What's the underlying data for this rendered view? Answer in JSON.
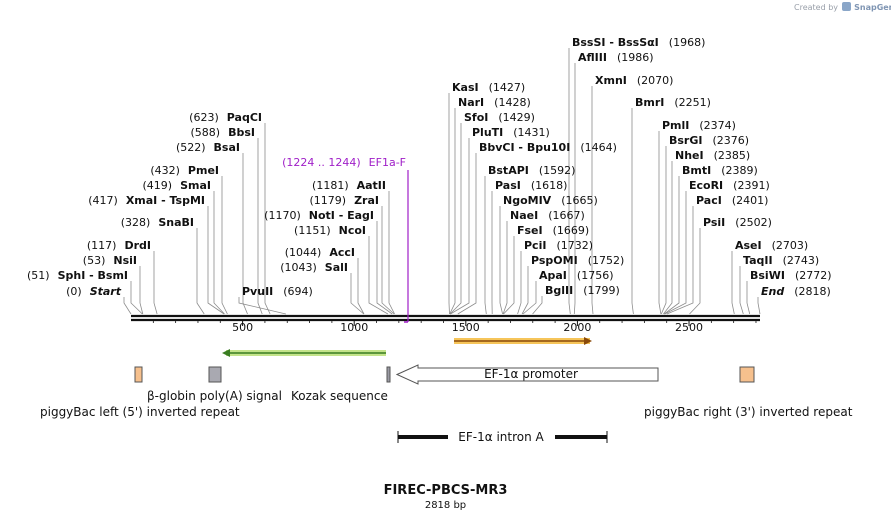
{
  "credit": {
    "prefix": "Created by",
    "brand": "SnapGene"
  },
  "plasmid": {
    "name": "FIREC-PBCS-MR3",
    "size_label": "2818 bp",
    "length": 2818
  },
  "ruler": {
    "ticks": [
      "500",
      "1000",
      "1500",
      "2000",
      "2500"
    ]
  },
  "colors": {
    "primer": "#a020c8",
    "arrow_green": "#3a7d22",
    "arrow_orange": "#e07b16",
    "repeat_fill": "#f6c08d",
    "polya_fill": "#a9a9b1"
  },
  "sites": [
    {
      "name": "Start",
      "pos": "(0)",
      "italic": true
    },
    {
      "name": "SphI  -  BsmI",
      "pos": "(51)"
    },
    {
      "name": "NsiI",
      "pos": "(53)"
    },
    {
      "name": "DrdI",
      "pos": "(117)"
    },
    {
      "name": "SnaBI",
      "pos": "(328)"
    },
    {
      "name": "XmaI  -  TspMI",
      "pos": "(417)"
    },
    {
      "name": "SmaI",
      "pos": "(419)"
    },
    {
      "name": "PmeI",
      "pos": "(432)"
    },
    {
      "name": "BsaI",
      "pos": "(522)"
    },
    {
      "name": "BbsI",
      "pos": "(588)"
    },
    {
      "name": "PaqCI",
      "pos": "(623)"
    },
    {
      "name": "PvuII",
      "pos": "(694)"
    },
    {
      "name": "SalI",
      "pos": "(1043)"
    },
    {
      "name": "AccI",
      "pos": "(1044)"
    },
    {
      "name": "NcoI",
      "pos": "(1151)"
    },
    {
      "name": "NotI  -  EagI",
      "pos": "(1170)"
    },
    {
      "name": "ZraI",
      "pos": "(1179)"
    },
    {
      "name": "AatII",
      "pos": "(1181)"
    },
    {
      "name": "KasI",
      "pos": "(1427)"
    },
    {
      "name": "NarI",
      "pos": "(1428)"
    },
    {
      "name": "SfoI",
      "pos": "(1429)"
    },
    {
      "name": "PluTI",
      "pos": "(1431)"
    },
    {
      "name": "BbvCI  -  Bpu10I",
      "pos": "(1464)"
    },
    {
      "name": "BstAPI",
      "pos": "(1592)"
    },
    {
      "name": "PasI",
      "pos": "(1618)"
    },
    {
      "name": "NgoMIV",
      "pos": "(1665)"
    },
    {
      "name": "NaeI",
      "pos": "(1667)"
    },
    {
      "name": "FseI",
      "pos": "(1669)"
    },
    {
      "name": "PciI",
      "pos": "(1732)"
    },
    {
      "name": "PspOMI",
      "pos": "(1752)"
    },
    {
      "name": "ApaI",
      "pos": "(1756)"
    },
    {
      "name": "BglII",
      "pos": "(1799)"
    },
    {
      "name": "BssSI  -  BssSαI",
      "pos": "(1968)"
    },
    {
      "name": "AflIII",
      "pos": "(1986)"
    },
    {
      "name": "XmnI",
      "pos": "(2070)"
    },
    {
      "name": "BmrI",
      "pos": "(2251)"
    },
    {
      "name": "PmlI",
      "pos": "(2374)"
    },
    {
      "name": "BsrGI",
      "pos": "(2376)"
    },
    {
      "name": "NheI",
      "pos": "(2385)"
    },
    {
      "name": "BmtI",
      "pos": "(2389)"
    },
    {
      "name": "EcoRI",
      "pos": "(2391)"
    },
    {
      "name": "PacI",
      "pos": "(2401)"
    },
    {
      "name": "PsiI",
      "pos": "(2502)"
    },
    {
      "name": "AseI",
      "pos": "(2703)"
    },
    {
      "name": "TaqII",
      "pos": "(2743)"
    },
    {
      "name": "BsiWI",
      "pos": "(2772)"
    },
    {
      "name": "End",
      "pos": "(2818)",
      "italic": true
    }
  ],
  "primer": {
    "name": "EF1a-F",
    "range": "(1224 .. 1244)"
  },
  "features": {
    "kozak": "Kozak sequence",
    "polya": "β-globin poly(A) signal",
    "left_repeat": "piggyBac left (5') inverted repeat",
    "promoter": "EF-1α promoter",
    "right_repeat": "piggyBac right (3') inverted repeat",
    "intron": "EF-1α intron A"
  }
}
